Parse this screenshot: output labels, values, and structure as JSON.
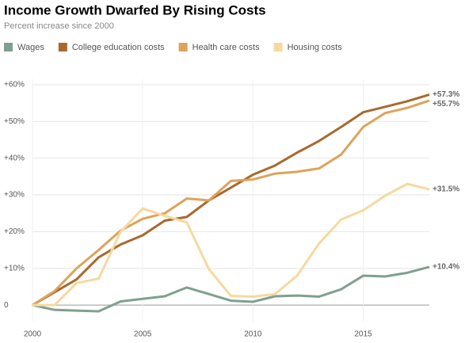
{
  "chart_data": {
    "type": "line",
    "title": "Income Growth Dwarfed By Rising Costs",
    "subtitle": "Percent increase since 2000",
    "x": [
      2000,
      2001,
      2002,
      2003,
      2004,
      2005,
      2006,
      2007,
      2008,
      2009,
      2010,
      2011,
      2012,
      2013,
      2014,
      2015,
      2016,
      2017,
      2018
    ],
    "series": [
      {
        "name": "Wages",
        "color": "#7fa08f",
        "end_label": "+10.4%",
        "values": [
          0,
          -1.3,
          -1.5,
          -1.7,
          1,
          1.7,
          2.4,
          4.8,
          3,
          1.2,
          0.9,
          2.4,
          2.6,
          2.3,
          4.3,
          8,
          7.8,
          8.8,
          10.4
        ]
      },
      {
        "name": "College education costs",
        "color": "#a8692f",
        "end_label": "+57.3%",
        "values": [
          0,
          3.5,
          7,
          13,
          16.5,
          19,
          23,
          24,
          28.5,
          32,
          35.5,
          38,
          41.5,
          44.7,
          48.5,
          52.5,
          54,
          55.5,
          57.3
        ]
      },
      {
        "name": "Health care costs",
        "color": "#dda35a",
        "end_label": "+55.7%",
        "values": [
          0,
          3.8,
          10,
          15,
          20.3,
          23.5,
          25,
          29,
          28.5,
          33.8,
          34.2,
          35.8,
          36.3,
          37.2,
          41,
          48.5,
          52.3,
          53.7,
          55.7
        ]
      },
      {
        "name": "Housing costs",
        "color": "#f5d9a0",
        "end_label": "+31.5%",
        "values": [
          0,
          0,
          6,
          7.2,
          20,
          26.3,
          24.3,
          22.5,
          9.8,
          2.5,
          2.3,
          3,
          8,
          16.8,
          23.3,
          25.8,
          29.8,
          33,
          31.5
        ]
      }
    ],
    "xlim": [
      2000,
      2018
    ],
    "xticks": [
      2000,
      2005,
      2010,
      2015
    ],
    "ylim": [
      -4.5,
      61.5
    ],
    "yticks": [
      0,
      {
        "value": 10,
        "label": "+10%"
      },
      {
        "value": 20,
        "label": "+20%"
      },
      {
        "value": 30,
        "label": "+30%"
      },
      {
        "value": 40,
        "label": "+40%"
      },
      {
        "value": 50,
        "label": "+50%"
      },
      {
        "value": 60,
        "label": "+60%"
      }
    ],
    "grid": true
  }
}
